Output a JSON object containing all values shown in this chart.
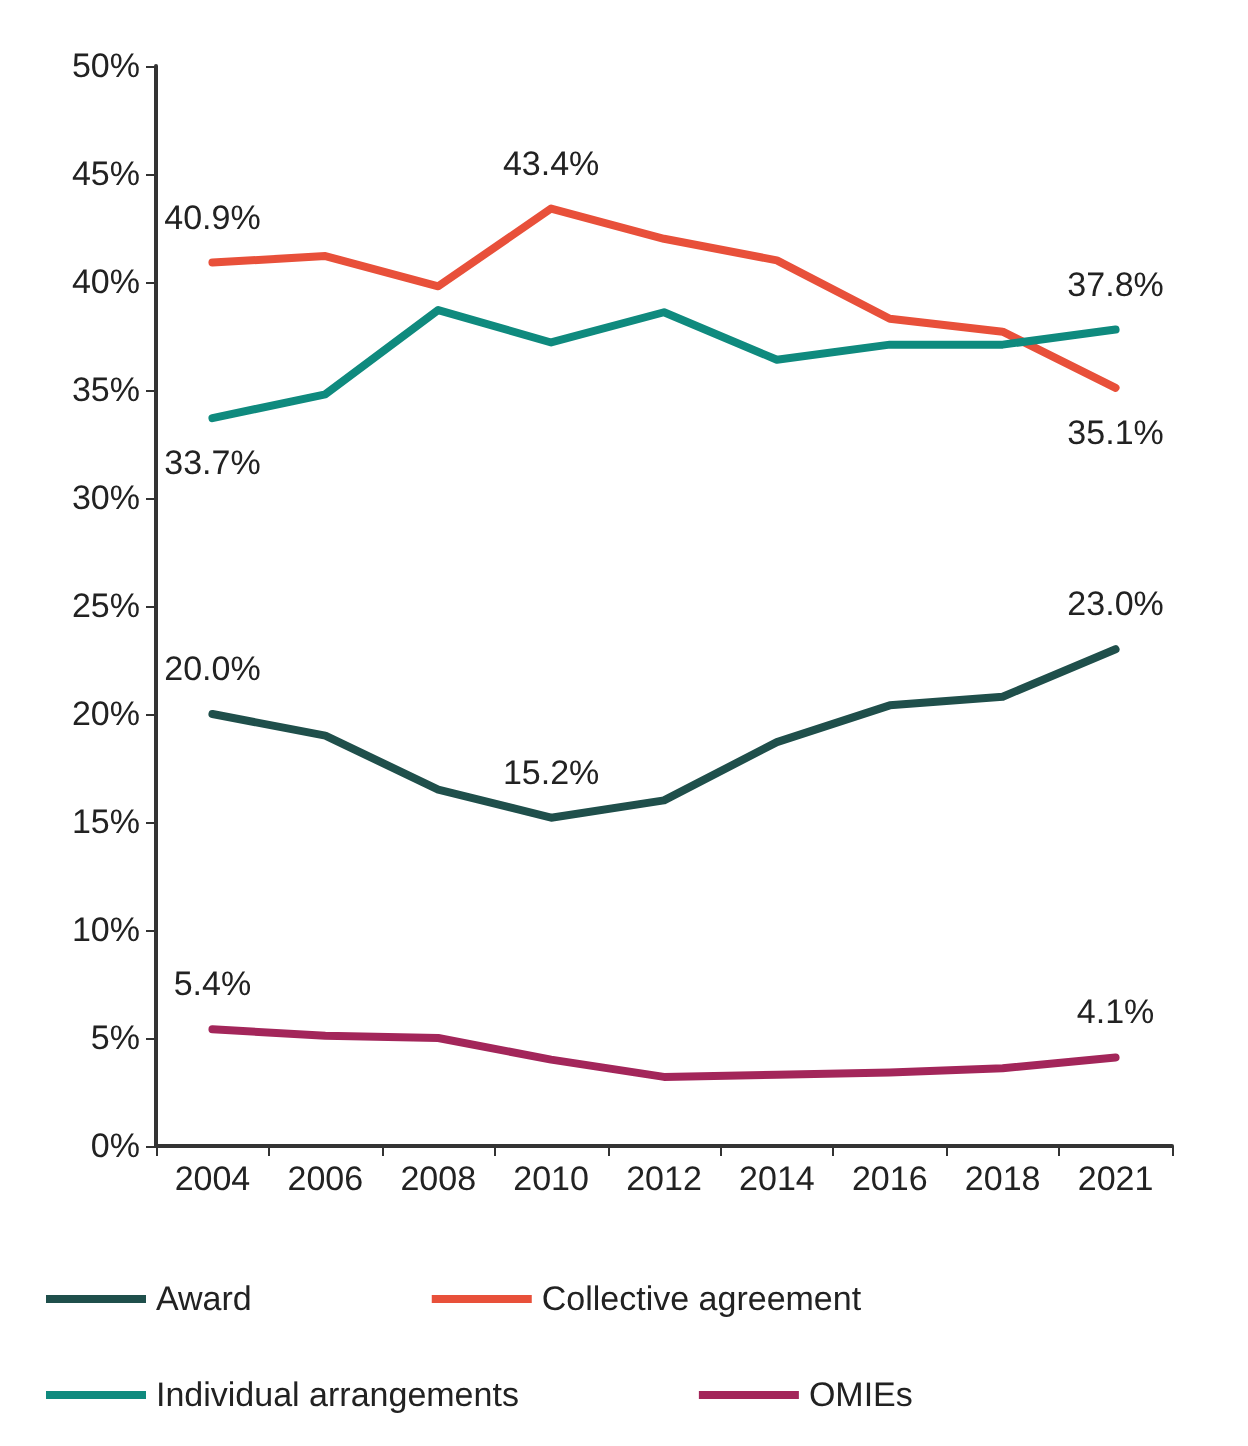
{
  "chart_data": {
    "type": "line",
    "categories": [
      "2004",
      "2006",
      "2008",
      "2010",
      "2012",
      "2014",
      "2016",
      "2018",
      "2021"
    ],
    "ylim": [
      0,
      50
    ],
    "yticks": [
      {
        "value": 0,
        "label": "0%"
      },
      {
        "value": 5,
        "label": "5%"
      },
      {
        "value": 10,
        "label": "10%"
      },
      {
        "value": 15,
        "label": "15%"
      },
      {
        "value": 20,
        "label": "20%"
      },
      {
        "value": 25,
        "label": "25%"
      },
      {
        "value": 30,
        "label": "30%"
      },
      {
        "value": 35,
        "label": "35%"
      },
      {
        "value": 40,
        "label": "40%"
      },
      {
        "value": 45,
        "label": "45%"
      },
      {
        "value": 50,
        "label": "50%"
      }
    ],
    "series": [
      {
        "name": "Award",
        "color": "#1f4f4b",
        "values": [
          20.0,
          19.0,
          16.5,
          15.2,
          16.0,
          18.7,
          20.4,
          20.8,
          23.0
        ],
        "value_labels": [
          "20.0%",
          null,
          null,
          "15.2%",
          null,
          null,
          null,
          null,
          "23.0%"
        ]
      },
      {
        "name": "Collective agreement",
        "color": "#e8503a",
        "values": [
          40.9,
          41.2,
          39.8,
          43.4,
          42.0,
          41.0,
          38.3,
          37.7,
          35.1
        ],
        "value_labels": [
          "40.9%",
          null,
          null,
          "43.4%",
          null,
          null,
          null,
          null,
          "35.1%"
        ]
      },
      {
        "name": "Individual arrangements",
        "color": "#0f8a7e",
        "values": [
          33.7,
          34.8,
          38.7,
          37.2,
          38.6,
          36.4,
          37.1,
          37.1,
          37.8
        ],
        "value_labels": [
          "33.7%",
          null,
          null,
          null,
          null,
          null,
          null,
          null,
          "37.8%"
        ]
      },
      {
        "name": "OMIEs",
        "color": "#a3265a",
        "values": [
          5.4,
          5.1,
          5.0,
          4.0,
          3.2,
          3.3,
          3.4,
          3.6,
          4.1
        ],
        "value_labels": [
          "5.4%",
          null,
          null,
          null,
          null,
          null,
          null,
          null,
          "4.1%"
        ]
      }
    ],
    "grid": false,
    "legend": "bottom",
    "marker": "none",
    "line_style": "solid"
  }
}
